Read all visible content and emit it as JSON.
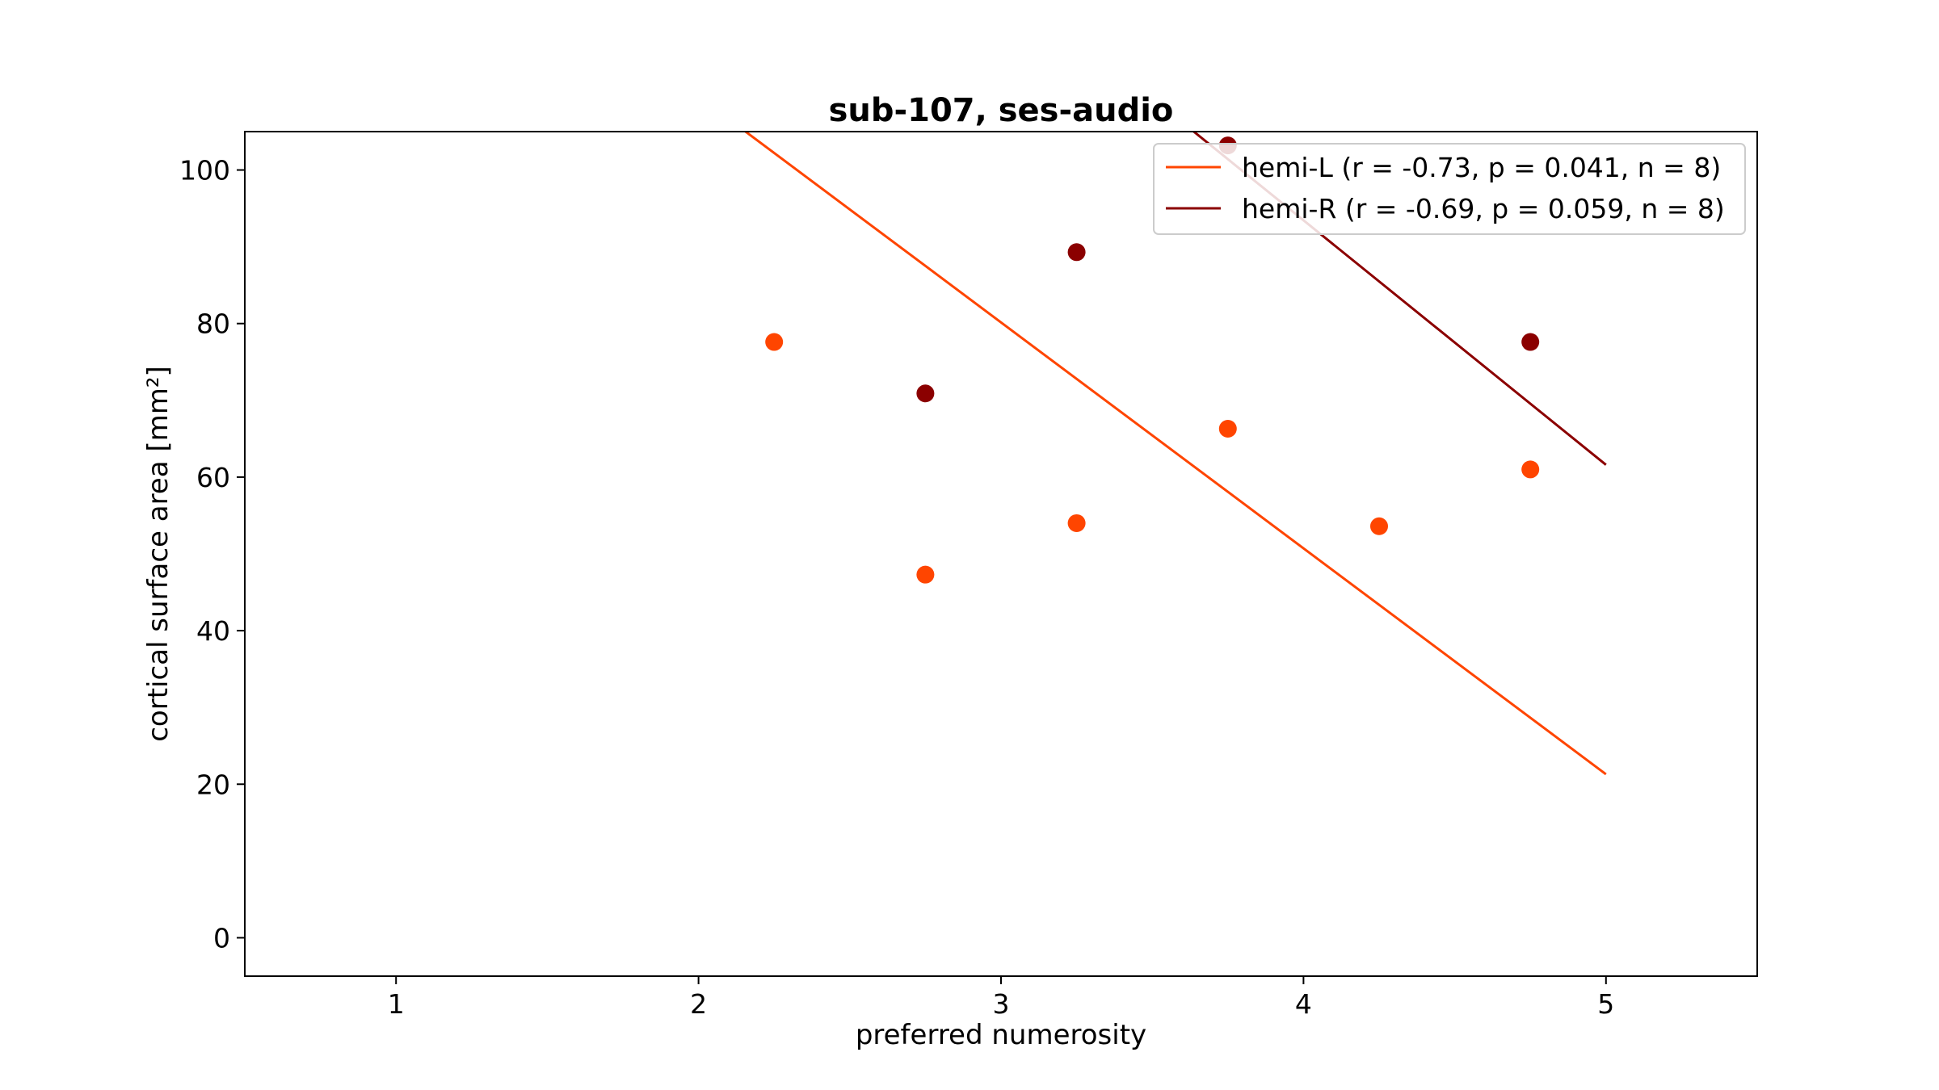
{
  "chart_data": {
    "type": "scatter",
    "title": "sub-107, ses-audio",
    "xlabel": "preferred numerosity",
    "ylabel": "cortical surface area [mm²]",
    "xlim": [
      0.5,
      5.5
    ],
    "ylim": [
      -5,
      105
    ],
    "xticks": [
      1,
      2,
      3,
      4,
      5
    ],
    "yticks": [
      0,
      20,
      40,
      60,
      80,
      100
    ],
    "grid": false,
    "legend_position": "top-right",
    "series": [
      {
        "name": "hemi-L (r = -0.73, p = 0.041, n = 8)",
        "color": "#ff4500",
        "points": [
          {
            "x": 2.25,
            "y": 77.6
          },
          {
            "x": 2.75,
            "y": 47.3
          },
          {
            "x": 3.25,
            "y": 54.0
          },
          {
            "x": 3.75,
            "y": 66.3
          },
          {
            "x": 4.25,
            "y": 53.6
          },
          {
            "x": 4.75,
            "y": 61.0
          }
        ],
        "fit_line": {
          "x": [
            1,
            5
          ],
          "y": [
            139.0,
            21.3
          ]
        }
      },
      {
        "name": "hemi-R (r = -0.69, p = 0.059, n = 8)",
        "color": "#8b0000",
        "points": [
          {
            "x": 2.75,
            "y": 70.9
          },
          {
            "x": 3.25,
            "y": 89.3
          },
          {
            "x": 3.75,
            "y": 103.2
          },
          {
            "x": 4.75,
            "y": 77.6
          }
        ],
        "fit_line": {
          "x": [
            1,
            5
          ],
          "y": [
            189.0,
            61.6
          ]
        }
      }
    ]
  }
}
